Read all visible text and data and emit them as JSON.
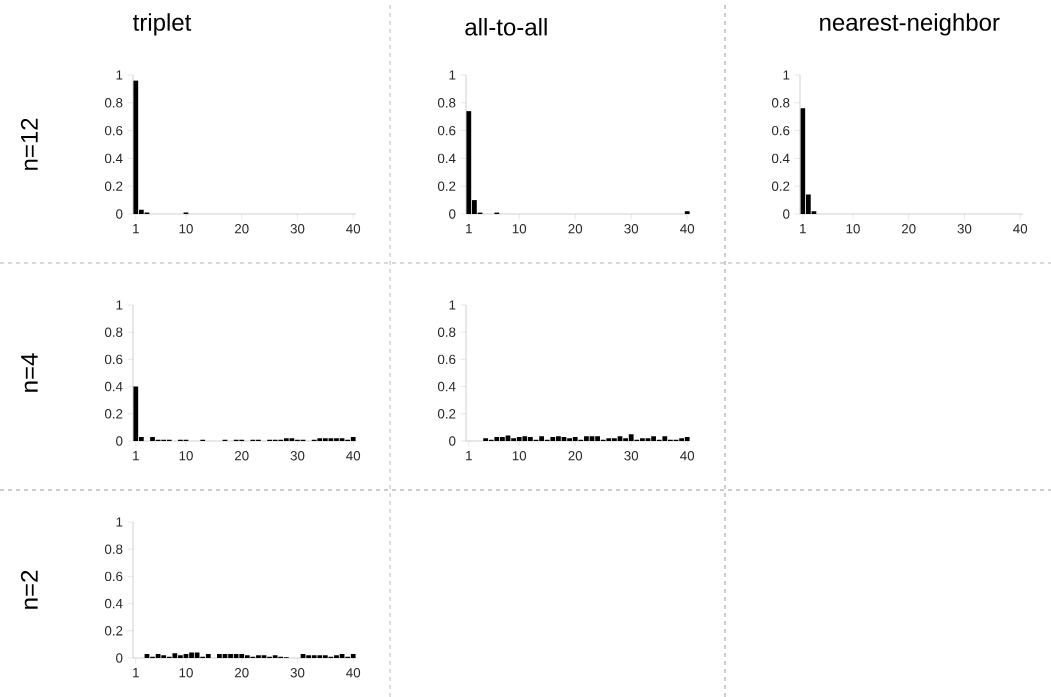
{
  "chart_data": [
    {
      "type": "bar",
      "title": "triplet",
      "ylabel": "n=12",
      "color": "#000000",
      "x": [
        1,
        2,
        3,
        4,
        5,
        6,
        7,
        8,
        9,
        10,
        11,
        12,
        13,
        14,
        15,
        16,
        17,
        18,
        19,
        20,
        21,
        22,
        23,
        24,
        25,
        26,
        27,
        28,
        29,
        30,
        31,
        32,
        33,
        34,
        35,
        36,
        37,
        38,
        39,
        40
      ],
      "values": [
        0.96,
        0.03,
        0.01,
        0,
        0,
        0,
        0,
        0,
        0,
        0.01,
        0,
        0,
        0,
        0,
        0,
        0,
        0,
        0,
        0,
        0,
        0,
        0,
        0,
        0,
        0,
        0,
        0,
        0,
        0,
        0,
        0,
        0,
        0,
        0,
        0,
        0,
        0,
        0,
        0,
        0
      ],
      "xlim": [
        0.5,
        40.5
      ],
      "xticks": [
        1,
        10,
        20,
        30,
        40
      ],
      "ylim": [
        0,
        1
      ],
      "yticks": [
        0,
        0.2,
        0.4,
        0.6,
        0.8,
        1
      ]
    },
    {
      "type": "bar",
      "title": "all-to-all",
      "color": "#000000",
      "x": [
        1,
        2,
        3,
        4,
        5,
        6,
        7,
        8,
        9,
        10,
        11,
        12,
        13,
        14,
        15,
        16,
        17,
        18,
        19,
        20,
        21,
        22,
        23,
        24,
        25,
        26,
        27,
        28,
        29,
        30,
        31,
        32,
        33,
        34,
        35,
        36,
        37,
        38,
        39,
        40
      ],
      "values": [
        0.74,
        0.1,
        0.01,
        0,
        0,
        0.01,
        0,
        0,
        0,
        0,
        0,
        0,
        0,
        0,
        0,
        0,
        0,
        0,
        0,
        0,
        0,
        0,
        0,
        0,
        0,
        0,
        0,
        0,
        0,
        0,
        0,
        0,
        0,
        0,
        0,
        0,
        0,
        0,
        0,
        0.02
      ],
      "xlim": [
        0.5,
        40.5
      ],
      "xticks": [
        1,
        10,
        20,
        30,
        40
      ],
      "ylim": [
        0,
        1
      ],
      "yticks": [
        0,
        0.2,
        0.4,
        0.6,
        0.8,
        1
      ]
    },
    {
      "type": "bar",
      "title": "nearest-neighbor",
      "color": "#000000",
      "x": [
        1,
        2,
        3,
        4,
        5,
        6,
        7,
        8,
        9,
        10,
        11,
        12,
        13,
        14,
        15,
        16,
        17,
        18,
        19,
        20,
        21,
        22,
        23,
        24,
        25,
        26,
        27,
        28,
        29,
        30,
        31,
        32,
        33,
        34,
        35,
        36,
        37,
        38,
        39,
        40
      ],
      "values": [
        0.76,
        0.14,
        0.02,
        0,
        0,
        0,
        0,
        0,
        0,
        0,
        0,
        0,
        0,
        0,
        0,
        0,
        0,
        0,
        0,
        0,
        0,
        0,
        0,
        0,
        0,
        0,
        0,
        0,
        0,
        0,
        0,
        0,
        0,
        0,
        0,
        0,
        0,
        0,
        0,
        0
      ],
      "xlim": [
        0.5,
        40.5
      ],
      "xticks": [
        1,
        10,
        20,
        30,
        40
      ],
      "ylim": [
        0,
        1
      ],
      "yticks": [
        0,
        0.2,
        0.4,
        0.6,
        0.8,
        1
      ]
    },
    {
      "type": "bar",
      "ylabel": "n=4",
      "color": "#000000",
      "x": [
        1,
        2,
        3,
        4,
        5,
        6,
        7,
        8,
        9,
        10,
        11,
        12,
        13,
        14,
        15,
        16,
        17,
        18,
        19,
        20,
        21,
        22,
        23,
        24,
        25,
        26,
        27,
        28,
        29,
        30,
        31,
        32,
        33,
        34,
        35,
        36,
        37,
        38,
        39,
        40
      ],
      "values": [
        0.4,
        0.03,
        0,
        0.03,
        0.01,
        0.01,
        0.01,
        0,
        0.01,
        0.01,
        0,
        0,
        0.01,
        0,
        0,
        0,
        0.01,
        0,
        0.01,
        0.01,
        0,
        0.01,
        0.01,
        0,
        0.01,
        0.01,
        0.01,
        0.02,
        0.02,
        0.01,
        0.01,
        0,
        0.01,
        0.02,
        0.02,
        0.02,
        0.02,
        0.02,
        0.01,
        0.03
      ],
      "xlim": [
        0.5,
        40.5
      ],
      "xticks": [
        1,
        10,
        20,
        30,
        40
      ],
      "ylim": [
        0,
        1
      ],
      "yticks": [
        0,
        0.2,
        0.4,
        0.6,
        0.8,
        1
      ]
    },
    {
      "type": "bar",
      "color": "#000000",
      "x": [
        1,
        2,
        3,
        4,
        5,
        6,
        7,
        8,
        9,
        10,
        11,
        12,
        13,
        14,
        15,
        16,
        17,
        18,
        19,
        20,
        21,
        22,
        23,
        24,
        25,
        26,
        27,
        28,
        29,
        30,
        31,
        32,
        33,
        34,
        35,
        36,
        37,
        38,
        39,
        40
      ],
      "values": [
        0,
        0,
        0,
        0.02,
        0.01,
        0.03,
        0.03,
        0.04,
        0.02,
        0.03,
        0.035,
        0.03,
        0.01,
        0.035,
        0.01,
        0.03,
        0.035,
        0.03,
        0.02,
        0.03,
        0.01,
        0.035,
        0.035,
        0.035,
        0.01,
        0.02,
        0.02,
        0.035,
        0.02,
        0.05,
        0.01,
        0.02,
        0.02,
        0.035,
        0.01,
        0.035,
        0.01,
        0.01,
        0.02,
        0.03
      ],
      "xlim": [
        0.5,
        40.5
      ],
      "xticks": [
        1,
        10,
        20,
        30,
        40
      ],
      "ylim": [
        0,
        1
      ],
      "yticks": [
        0,
        0.2,
        0.4,
        0.6,
        0.8,
        1
      ]
    },
    {
      "type": "bar",
      "ylabel": "n=2",
      "color": "#000000",
      "x": [
        1,
        2,
        3,
        4,
        5,
        6,
        7,
        8,
        9,
        10,
        11,
        12,
        13,
        14,
        15,
        16,
        17,
        18,
        19,
        20,
        21,
        22,
        23,
        24,
        25,
        26,
        27,
        28,
        29,
        30,
        31,
        32,
        33,
        34,
        35,
        36,
        37,
        38,
        39,
        40
      ],
      "values": [
        0,
        0,
        0.03,
        0.01,
        0.03,
        0.02,
        0.01,
        0.035,
        0.02,
        0.03,
        0.04,
        0.04,
        0.01,
        0.03,
        0,
        0.03,
        0.03,
        0.03,
        0.03,
        0.03,
        0.02,
        0.01,
        0.02,
        0.02,
        0.01,
        0.02,
        0.01,
        0.005,
        0,
        0,
        0.03,
        0.02,
        0.02,
        0.02,
        0.02,
        0.01,
        0.02,
        0.03,
        0.01,
        0.03
      ],
      "xlim": [
        0.5,
        40.5
      ],
      "xticks": [
        1,
        10,
        20,
        30,
        40
      ],
      "ylim": [
        0,
        1
      ],
      "yticks": [
        0,
        0.2,
        0.4,
        0.6,
        0.8,
        1
      ]
    }
  ]
}
